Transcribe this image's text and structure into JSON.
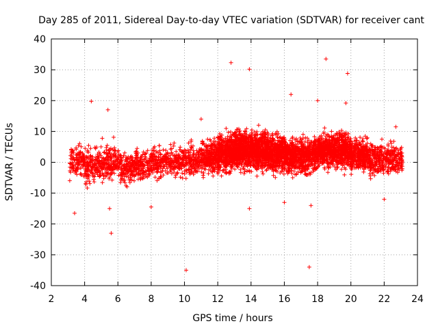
{
  "chart_data": {
    "type": "scatter",
    "title": "Day 285 of 2011, Sidereal Day-to-day VTEC variation (SDTVAR) for receiver cant",
    "xlabel": "GPS time / hours",
    "ylabel": "SDTVAR / TECUs",
    "xlim": [
      2,
      24
    ],
    "ylim": [
      -40,
      40
    ],
    "xticks": [
      2,
      4,
      6,
      8,
      10,
      12,
      14,
      16,
      18,
      20,
      22,
      24
    ],
    "yticks": [
      -40,
      -30,
      -20,
      -10,
      0,
      10,
      20,
      30,
      40
    ],
    "xtick_labels": [
      "2",
      "4",
      "6",
      "8",
      "10",
      "12",
      "14",
      "16",
      "18",
      "20",
      "22",
      "24"
    ],
    "ytick_labels": [
      "-40",
      "-30",
      "-20",
      "-10",
      "0",
      "10",
      "20",
      "30",
      "40"
    ],
    "grid": true,
    "marker": "+",
    "color": "#ff0000",
    "series": [
      {
        "name": "SDTVAR",
        "outliers": [
          {
            "x": 3.4,
            "y": -16.5
          },
          {
            "x": 4.4,
            "y": 19.8
          },
          {
            "x": 5.4,
            "y": 17.0
          },
          {
            "x": 5.6,
            "y": -23.0
          },
          {
            "x": 5.5,
            "y": -15.0
          },
          {
            "x": 10.1,
            "y": -35.0
          },
          {
            "x": 12.8,
            "y": 32.3
          },
          {
            "x": 13.9,
            "y": 30.2
          },
          {
            "x": 13.9,
            "y": -15.0
          },
          {
            "x": 16.4,
            "y": 22.0
          },
          {
            "x": 16.0,
            "y": -13.0
          },
          {
            "x": 17.5,
            "y": -34.0
          },
          {
            "x": 17.6,
            "y": -14.0
          },
          {
            "x": 18.0,
            "y": 20.0
          },
          {
            "x": 18.5,
            "y": 33.5
          },
          {
            "x": 19.8,
            "y": 28.8
          },
          {
            "x": 19.7,
            "y": 19.2
          },
          {
            "x": 22.0,
            "y": -12.0
          },
          {
            "x": 22.7,
            "y": 11.5
          },
          {
            "x": 11.0,
            "y": 14.0
          },
          {
            "x": 8.0,
            "y": -14.5
          }
        ],
        "segments": [
          {
            "x": [
              3.1,
              4.0
            ],
            "mean": 0.5,
            "spread": 4.0,
            "count": 120
          },
          {
            "x": [
              4.0,
              5.0
            ],
            "mean": -1.0,
            "spread": 4.5,
            "count": 160
          },
          {
            "x": [
              5.0,
              6.0
            ],
            "mean": 0.0,
            "spread": 4.5,
            "count": 160
          },
          {
            "x": [
              6.0,
              7.0
            ],
            "mean": -2.0,
            "spread": 4.0,
            "count": 150
          },
          {
            "x": [
              7.0,
              8.0
            ],
            "mean": -1.0,
            "spread": 4.0,
            "count": 150
          },
          {
            "x": [
              8.0,
              9.0
            ],
            "mean": 0.0,
            "spread": 4.0,
            "count": 150
          },
          {
            "x": [
              9.0,
              10.0
            ],
            "mean": 0.5,
            "spread": 4.0,
            "count": 150
          },
          {
            "x": [
              10.0,
              11.0
            ],
            "mean": 0.5,
            "spread": 4.0,
            "count": 150
          },
          {
            "x": [
              11.0,
              12.0
            ],
            "mean": 2.0,
            "spread": 4.5,
            "count": 260
          },
          {
            "x": [
              12.0,
              13.0
            ],
            "mean": 3.0,
            "spread": 5.0,
            "count": 420
          },
          {
            "x": [
              13.0,
              14.0
            ],
            "mean": 4.0,
            "spread": 5.0,
            "count": 480
          },
          {
            "x": [
              14.0,
              15.0
            ],
            "mean": 4.0,
            "spread": 5.0,
            "count": 480
          },
          {
            "x": [
              15.0,
              16.0
            ],
            "mean": 3.0,
            "spread": 5.0,
            "count": 420
          },
          {
            "x": [
              16.0,
              17.0
            ],
            "mean": 2.0,
            "spread": 4.5,
            "count": 360
          },
          {
            "x": [
              17.0,
              18.0
            ],
            "mean": 2.0,
            "spread": 4.5,
            "count": 320
          },
          {
            "x": [
              18.0,
              19.0
            ],
            "mean": 4.0,
            "spread": 4.5,
            "count": 380
          },
          {
            "x": [
              19.0,
              20.0
            ],
            "mean": 4.0,
            "spread": 4.5,
            "count": 380
          },
          {
            "x": [
              20.0,
              21.0
            ],
            "mean": 2.5,
            "spread": 4.0,
            "count": 300
          },
          {
            "x": [
              21.0,
              22.0
            ],
            "mean": 1.0,
            "spread": 4.0,
            "count": 200
          },
          {
            "x": [
              22.0,
              23.1
            ],
            "mean": 1.0,
            "spread": 4.0,
            "count": 180
          }
        ]
      }
    ]
  }
}
